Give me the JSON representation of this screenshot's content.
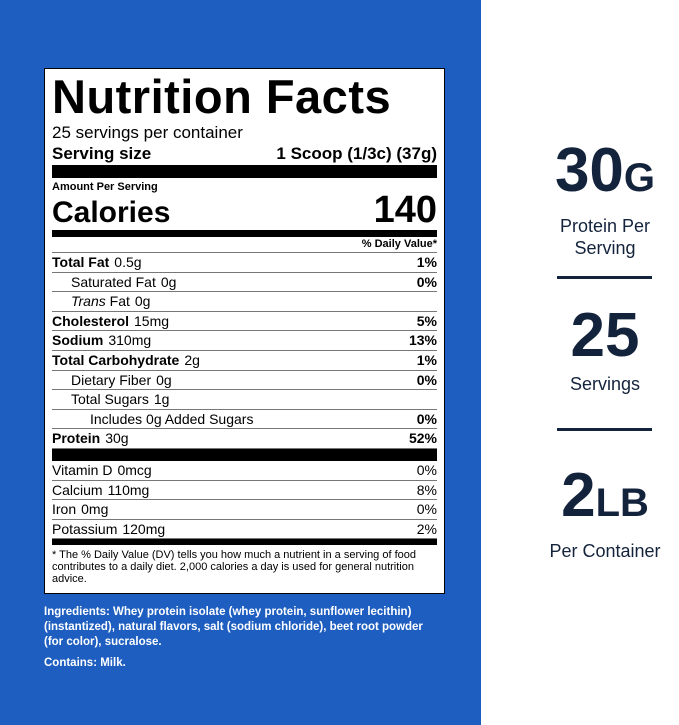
{
  "label": {
    "title": "Nutrition Facts",
    "servings": "25 servings per container",
    "serving_size_label": "Serving size",
    "serving_size": "1 Scoop (1/3c) (37g)",
    "amount_per_serving": "Amount Per Serving",
    "calories_label": "Calories",
    "calories": 140,
    "dv_header": "% Daily Value*",
    "nutrients": [
      {
        "name": "Total Fat",
        "amount": "0.5g",
        "dv": "1%",
        "bold": true,
        "indent": 0
      },
      {
        "name": "Saturated Fat",
        "amount": "0g",
        "dv": "0%",
        "bold": false,
        "indent": 1
      },
      {
        "name_italic": "Trans",
        "name": "Fat",
        "amount": "0g",
        "bold": false,
        "indent": 1
      },
      {
        "name": "Cholesterol",
        "amount": "15mg",
        "dv": "5%",
        "bold": true,
        "indent": 0
      },
      {
        "name": "Sodium",
        "amount": "310mg",
        "dv": "13%",
        "bold": true,
        "indent": 0
      },
      {
        "name": "Total Carbohydrate",
        "amount": "2g",
        "dv": "1%",
        "bold": true,
        "indent": 0
      },
      {
        "name": "Dietary Fiber",
        "amount": "0g",
        "dv": "0%",
        "bold": false,
        "indent": 1
      },
      {
        "name": "Total Sugars",
        "amount": "1g",
        "bold": false,
        "indent": 1
      },
      {
        "name": "Includes 0g Added Sugars",
        "dv": "0%",
        "bold": false,
        "indent": 2
      },
      {
        "name": "Protein",
        "amount": "30g",
        "dv": "52%",
        "bold": true,
        "indent": 0
      }
    ],
    "vitamins": [
      {
        "name": "Vitamin D",
        "amount": "0mcg",
        "dv": "0%"
      },
      {
        "name": "Calcium",
        "amount": "110mg",
        "dv": "8%"
      },
      {
        "name": "Iron",
        "amount": "0mg",
        "dv": "0%"
      },
      {
        "name": "Potassium",
        "amount": "120mg",
        "dv": "2%"
      }
    ],
    "footnote": "* The % Daily Value (DV) tells you how much a nutrient in a serving of food contributes to a daily diet. 2,000 calories a day is used for general nutrition advice."
  },
  "ingredients": {
    "text": "Ingredients: Whey protein isolate (whey protein, sunflower lecithin)(instantized), natural flavors, salt (sodium chloride), beet root powder (for color), sucralose.",
    "contains": "Contains: Milk."
  },
  "stats": [
    {
      "value": "30",
      "unit": "G",
      "label": "Protein Per Serving"
    },
    {
      "value": "25",
      "label": "Servings"
    },
    {
      "value": "2",
      "unit": "LB",
      "label": "Per Container"
    }
  ]
}
